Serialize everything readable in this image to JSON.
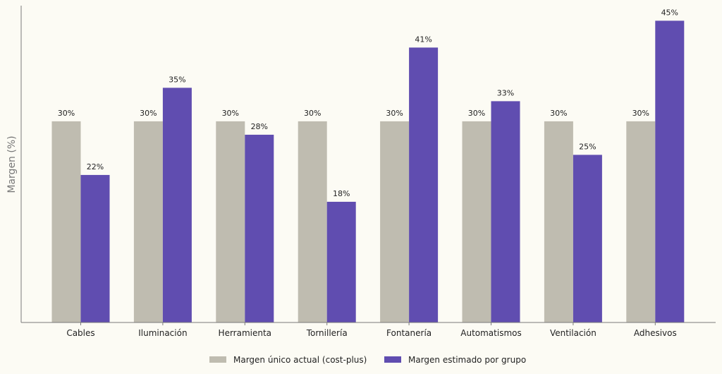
{
  "chart_data": {
    "type": "bar",
    "title": "",
    "xlabel": "",
    "ylabel": "Margen (%)",
    "ylim": [
      0,
      47.25
    ],
    "grid": false,
    "legend_position": "bottom-center",
    "categories": [
      "Cables",
      "Iluminación",
      "Herramienta",
      "Tornillería",
      "Fontanería",
      "Automatismos",
      "Ventilación",
      "Adhesivos"
    ],
    "series": [
      {
        "name": "Margen único actual (cost-plus)",
        "color": "#bfbcb0",
        "values": [
          30,
          30,
          30,
          30,
          30,
          30,
          30,
          30
        ],
        "labels": [
          "30%",
          "30%",
          "30%",
          "30%",
          "30%",
          "30%",
          "30%",
          "30%"
        ]
      },
      {
        "name": "Margen estimado por grupo",
        "color": "#604db0",
        "values": [
          22,
          35,
          28,
          18,
          41,
          33,
          25,
          45
        ],
        "labels": [
          "22%",
          "35%",
          "28%",
          "18%",
          "41%",
          "33%",
          "25%",
          "45%"
        ]
      }
    ]
  }
}
